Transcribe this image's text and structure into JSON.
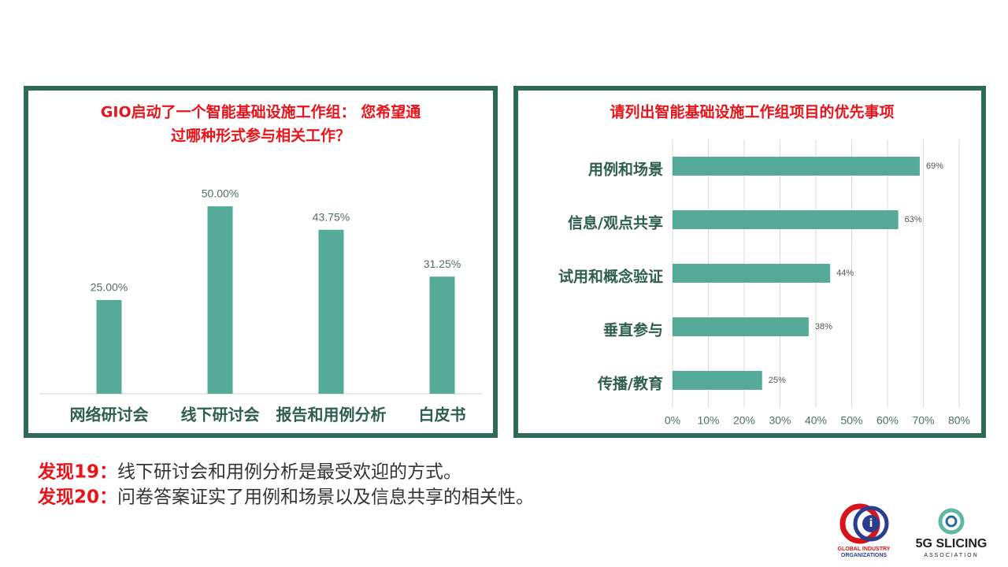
{
  "chart_data": [
    {
      "type": "bar",
      "title": [
        "GIO启动了一个智能基础设施工作组： 您希望通",
        "过哪种形式参与相关工作？"
      ],
      "categories": [
        "网络研讨会",
        "线下研讨会",
        "报告和用例分析",
        "白皮书"
      ],
      "values": [
        25,
        50,
        43.75,
        31.25
      ],
      "value_labels": [
        "25.00%",
        "50.00%",
        "43.75%",
        "31.25%"
      ],
      "color": "#55ab97"
    },
    {
      "type": "horizontal_bar",
      "title": [
        "请列出智能基础设施工作组项目的优先事项"
      ],
      "categories": [
        "用例和场景",
        "信息/观点共享",
        "试用和概念验证",
        "垂直参与",
        "传播/教育"
      ],
      "values": [
        69,
        63,
        44,
        38,
        25
      ],
      "value_labels": [
        "69%",
        "63%",
        "44%",
        "38%",
        "25%"
      ],
      "color": "#55ab97",
      "xlim": [
        0,
        80
      ],
      "xticks": [
        {
          "value": 0,
          "label": "0%"
        },
        {
          "value": 10,
          "label": "10%"
        },
        {
          "value": 20,
          "label": "20%"
        },
        {
          "value": 30,
          "label": "30%"
        },
        {
          "value": 40,
          "label": "40%"
        },
        {
          "value": 50,
          "label": "50%"
        },
        {
          "value": 60,
          "label": "60%"
        },
        {
          "value": 70,
          "label": "70%"
        },
        {
          "value": 80,
          "label": "80%"
        }
      ],
      "grid": true
    }
  ],
  "findings": [
    {
      "label": "发现19：",
      "text": "线下研讨会和用例分析是最受欢迎的方式。"
    },
    {
      "label": "发现20：",
      "text": "问卷答案证实了用例和场景以及信息共享的相关性。"
    }
  ],
  "logos": {
    "gio": [
      "GLOBAL INDUSTRY",
      "ORGANIZATIONS"
    ],
    "slicing": [
      "5G SLICING",
      "ASSOCIATION"
    ]
  }
}
